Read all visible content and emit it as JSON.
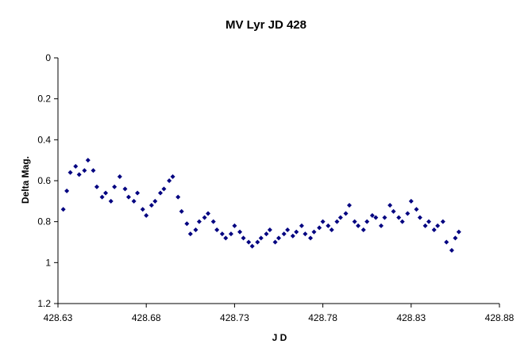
{
  "chart_data": {
    "type": "scatter",
    "title": "MV Lyr JD 428",
    "xlabel": "J D",
    "ylabel": "Delta Mag.",
    "xlim": [
      428.63,
      428.88
    ],
    "ylim": [
      0,
      1.2
    ],
    "y_inverted": true,
    "grid": false,
    "legend": "none",
    "marker": "diamond",
    "marker_color": "#000080",
    "x_ticks": [
      "428.63",
      "428.68",
      "428.73",
      "428.78",
      "428.83",
      "428.88"
    ],
    "y_ticks": [
      "0",
      "0.2",
      "0.4",
      "0.6",
      "0.8",
      "1",
      "1.2"
    ],
    "series": [
      {
        "x": [
          428.633,
          428.635,
          428.637,
          428.64,
          428.642,
          428.645,
          428.647,
          428.65,
          428.652,
          428.655,
          428.657,
          428.66,
          428.662,
          428.665,
          428.668,
          428.67,
          428.673,
          428.675,
          428.678,
          428.68,
          428.683,
          428.685,
          428.688,
          428.69,
          428.693,
          428.695,
          428.698,
          428.7,
          428.703,
          428.705,
          428.708,
          428.71,
          428.713,
          428.715,
          428.718,
          428.72,
          428.723,
          428.725,
          428.728,
          428.73,
          428.733,
          428.735,
          428.738,
          428.74,
          428.743,
          428.745,
          428.748,
          428.75,
          428.753,
          428.755,
          428.758,
          428.76,
          428.763,
          428.765,
          428.768,
          428.77,
          428.773,
          428.775,
          428.778,
          428.78,
          428.783,
          428.785,
          428.788,
          428.79,
          428.793,
          428.795,
          428.798,
          428.8,
          428.803,
          428.805,
          428.808,
          428.81,
          428.813,
          428.815,
          428.818,
          428.82,
          428.823,
          428.825,
          428.828,
          428.83,
          428.833,
          428.835,
          428.838,
          428.84,
          428.843,
          428.845,
          428.848,
          428.85,
          428.853,
          428.855,
          428.857
        ],
        "y": [
          0.74,
          0.65,
          0.56,
          0.53,
          0.57,
          0.55,
          0.5,
          0.55,
          0.63,
          0.68,
          0.66,
          0.7,
          0.63,
          0.58,
          0.64,
          0.68,
          0.7,
          0.66,
          0.74,
          0.77,
          0.72,
          0.7,
          0.66,
          0.64,
          0.6,
          0.58,
          0.68,
          0.75,
          0.81,
          0.86,
          0.84,
          0.8,
          0.78,
          0.76,
          0.8,
          0.84,
          0.86,
          0.88,
          0.86,
          0.82,
          0.85,
          0.88,
          0.9,
          0.92,
          0.9,
          0.88,
          0.86,
          0.84,
          0.9,
          0.88,
          0.86,
          0.84,
          0.87,
          0.85,
          0.82,
          0.86,
          0.88,
          0.85,
          0.83,
          0.8,
          0.82,
          0.84,
          0.8,
          0.78,
          0.76,
          0.72,
          0.8,
          0.82,
          0.84,
          0.8,
          0.77,
          0.78,
          0.82,
          0.78,
          0.72,
          0.75,
          0.78,
          0.8,
          0.76,
          0.7,
          0.74,
          0.78,
          0.82,
          0.8,
          0.84,
          0.82,
          0.8,
          0.9,
          0.94,
          0.88,
          0.85
        ]
      }
    ]
  }
}
